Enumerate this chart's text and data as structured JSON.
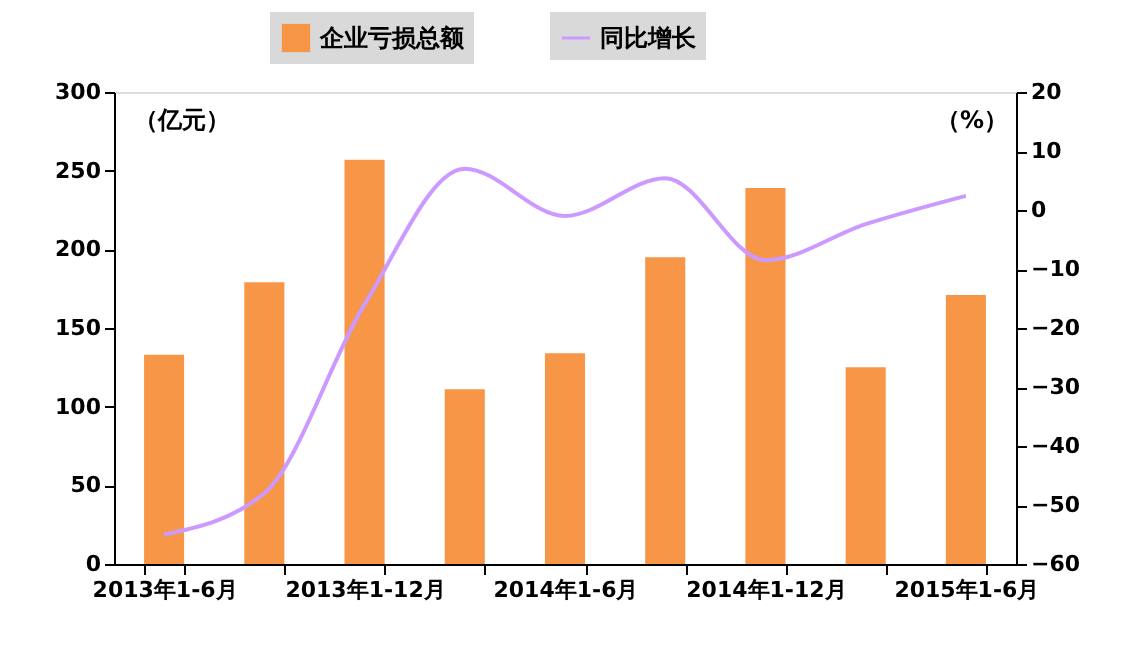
{
  "chart_data": {
    "type": "bar",
    "categories": [
      "2013年1-6月",
      null,
      "2013年1-12月",
      null,
      "2014年1-6月",
      null,
      "2014年1-12月",
      null,
      "2015年1-6月"
    ],
    "ylabel": "（亿元）",
    "y2label": "（%）",
    "ylim": [
      0,
      300
    ],
    "yticks": [
      0,
      50,
      100,
      150,
      200,
      250,
      300
    ],
    "y2lim": [
      -60,
      20
    ],
    "y2ticks": [
      -60,
      -50,
      -40,
      -30,
      -20,
      -10,
      0,
      10,
      20
    ],
    "series": [
      {
        "name": "企业亏损总额",
        "color": "#f79646",
        "values": [
          133,
          179,
          257,
          111,
          134,
          195,
          239,
          125,
          171
        ]
      },
      {
        "name": "同比增长",
        "type": "line",
        "axis": "y2",
        "color": "#cc99ff",
        "values": [
          -55,
          -48,
          -16,
          7,
          -1,
          5.4,
          -8.5,
          -2.4,
          2.4
        ]
      }
    ],
    "grid": false,
    "legend": "top"
  }
}
